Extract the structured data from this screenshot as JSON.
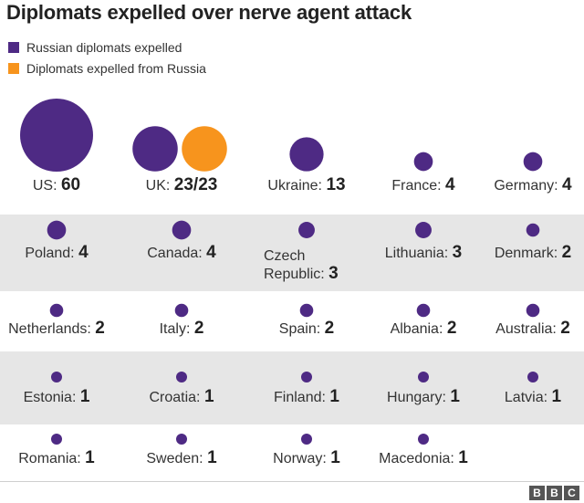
{
  "title": "Diplomats expelled over nerve agent attack",
  "legend": [
    {
      "label": "Russian diplomats expelled",
      "color": "#4e2a84"
    },
    {
      "label": "Diplomats expelled from Russia",
      "color": "#f7941d"
    }
  ],
  "chart_data": {
    "type": "bubble",
    "title": "Diplomats expelled over nerve agent attack",
    "series": [
      {
        "name": "Russian diplomats expelled",
        "color": "#4e2a84"
      },
      {
        "name": "Diplomats expelled from Russia",
        "color": "#f7941d"
      }
    ],
    "rows": [
      [
        {
          "country": "US",
          "value_text": "60",
          "russian_expelled": 60
        },
        {
          "country": "UK",
          "value_text": "23/23",
          "russian_expelled": 23,
          "expelled_from_russia": 23
        },
        {
          "country": "Ukraine",
          "value_text": "13",
          "russian_expelled": 13
        },
        {
          "country": "France",
          "value_text": "4",
          "russian_expelled": 4
        },
        {
          "country": "Germany",
          "value_text": "4",
          "russian_expelled": 4
        }
      ],
      [
        {
          "country": "Poland",
          "value_text": "4",
          "russian_expelled": 4
        },
        {
          "country": "Canada",
          "value_text": "4",
          "russian_expelled": 4
        },
        {
          "country": "Czech Republic",
          "value_text": "3",
          "russian_expelled": 3
        },
        {
          "country": "Lithuania",
          "value_text": "3",
          "russian_expelled": 3
        },
        {
          "country": "Denmark",
          "value_text": "2",
          "russian_expelled": 2
        }
      ],
      [
        {
          "country": "Netherlands",
          "value_text": "2",
          "russian_expelled": 2
        },
        {
          "country": "Italy",
          "value_text": "2",
          "russian_expelled": 2
        },
        {
          "country": "Spain",
          "value_text": "2",
          "russian_expelled": 2
        },
        {
          "country": "Albania",
          "value_text": "2",
          "russian_expelled": 2
        },
        {
          "country": "Australia",
          "value_text": "2",
          "russian_expelled": 2
        }
      ],
      [
        {
          "country": "Estonia",
          "value_text": "1",
          "russian_expelled": 1
        },
        {
          "country": "Croatia",
          "value_text": "1",
          "russian_expelled": 1
        },
        {
          "country": "Finland",
          "value_text": "1",
          "russian_expelled": 1
        },
        {
          "country": "Hungary",
          "value_text": "1",
          "russian_expelled": 1
        },
        {
          "country": "Latvia",
          "value_text": "1",
          "russian_expelled": 1
        }
      ],
      [
        {
          "country": "Romania",
          "value_text": "1",
          "russian_expelled": 1
        },
        {
          "country": "Sweden",
          "value_text": "1",
          "russian_expelled": 1
        },
        {
          "country": "Norway",
          "value_text": "1",
          "russian_expelled": 1
        },
        {
          "country": "Macedonia",
          "value_text": "1",
          "russian_expelled": 1
        }
      ]
    ]
  },
  "footer": {
    "logo_letters": [
      "B",
      "B",
      "C"
    ]
  }
}
